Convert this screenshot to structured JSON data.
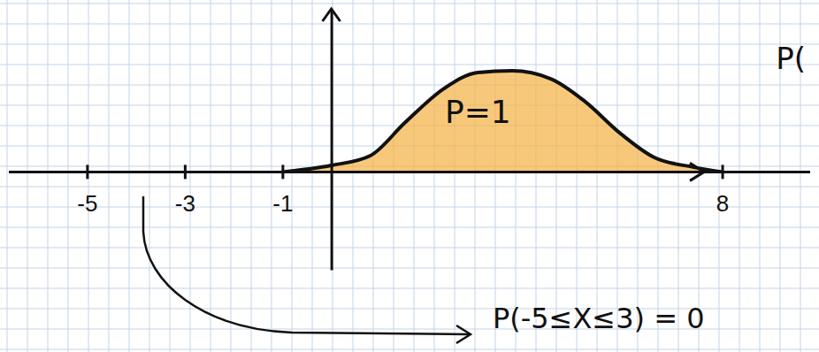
{
  "chart_data": {
    "type": "area",
    "x": [
      -1,
      0,
      0.8,
      1.5,
      2.3,
      3.0,
      3.7,
      4.5,
      5.2,
      5.9,
      6.6,
      7.4,
      8
    ],
    "values": [
      0,
      0.04,
      0.1,
      0.3,
      0.51,
      0.61,
      0.62,
      0.57,
      0.43,
      0.24,
      0.09,
      0.03,
      0
    ],
    "color": "#f5b041",
    "xlim": [
      -6.6,
      9.8
    ],
    "xticks": [
      -5,
      -3,
      -1,
      8
    ],
    "ylim": [
      -0.6,
      1
    ],
    "tick_labels": "x",
    "annotations": [
      {
        "text": "P=1",
        "x": 3.0,
        "y": 0.3
      },
      {
        "text": "P(-5≤X≤3) = 0",
        "x": 3.3,
        "y": -0.96
      },
      {
        "text": "P(",
        "x": 9.1,
        "y": 0.63
      }
    ]
  }
}
